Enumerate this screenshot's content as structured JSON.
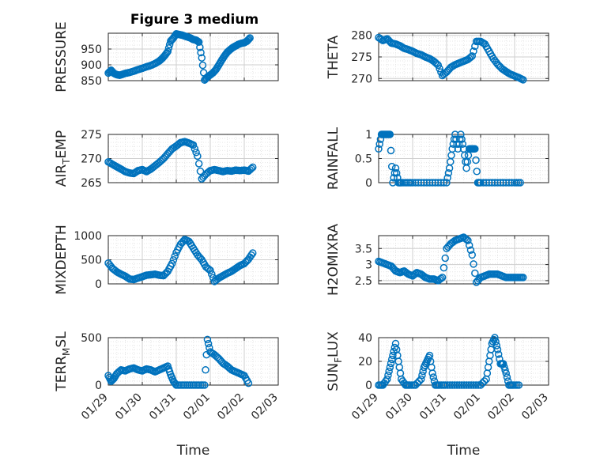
{
  "figure_title": "Figure 3 medium",
  "colors": {
    "marker": "#0072BD",
    "grid": "#d9d9d9",
    "axis": "#262626",
    "background": "#ffffff"
  },
  "chart_data": [
    {
      "type": "scatter",
      "ylabel": "PRESSURE",
      "title": "Figure 3 medium",
      "xlim": [
        "01/29",
        "02/03"
      ],
      "ylim": [
        850,
        1000
      ],
      "yticks": [
        "950",
        "900",
        "850"
      ],
      "grid": true,
      "x": [
        "01/29 00:00",
        "01/29 02:00",
        "01/29 04:00",
        "01/29 06:00",
        "01/29 08:00",
        "01/29 10:00",
        "01/29 12:00",
        "01/29 15:00",
        "01/29 18:00",
        "01/29 21:00",
        "01/30 00:00",
        "01/30 03:00",
        "01/30 06:00",
        "01/30 09:00",
        "01/30 12:00",
        "01/30 14:00",
        "01/30 16:00",
        "01/30 18:00",
        "01/30 20:00",
        "01/30 22:00",
        "01/31 00:00",
        "01/31 02:00",
        "01/31 04:00",
        "01/31 06:00",
        "01/31 08:00",
        "01/31 10:00",
        "01/31 12:00",
        "01/31 14:00",
        "01/31 16:00",
        "01/31 18:00",
        "01/31 20:00",
        "01/31 22:00",
        "02/01 00:00",
        "02/01 02:00",
        "02/01 04:00",
        "02/01 06:00",
        "02/01 08:00",
        "02/01 10:00",
        "02/01 12:00",
        "02/01 14:00",
        "02/01 16:00",
        "02/01 18:00",
        "02/01 20:00",
        "02/01 22:00",
        "02/02 00:00",
        "02/02 02:00",
        "02/02 04:00"
      ],
      "y": [
        874,
        883,
        873,
        869,
        867,
        870,
        873,
        876,
        880,
        885,
        889,
        894,
        898,
        904,
        912,
        920,
        930,
        942,
        975,
        985,
        998,
        996,
        994,
        991,
        988,
        985,
        980,
        978,
        972,
        922,
        852,
        862,
        868,
        875,
        885,
        899,
        914,
        928,
        940,
        948,
        955,
        960,
        965,
        968,
        970,
        975,
        985
      ]
    },
    {
      "type": "scatter",
      "ylabel": "THETA",
      "xlim": [
        "01/29",
        "02/03"
      ],
      "ylim": [
        269.5,
        280.5
      ],
      "yticks": [
        "280",
        "275",
        "270"
      ],
      "grid": true,
      "x": [
        "01/29 00:00",
        "01/29 03:00",
        "01/29 06:00",
        "01/29 09:00",
        "01/29 12:00",
        "01/29 15:00",
        "01/29 18:00",
        "01/29 21:00",
        "01/30 00:00",
        "01/30 03:00",
        "01/30 06:00",
        "01/30 09:00",
        "01/30 12:00",
        "01/30 15:00",
        "01/30 18:00",
        "01/30 21:00",
        "01/31 00:00",
        "01/31 03:00",
        "01/31 06:00",
        "01/31 09:00",
        "01/31 12:00",
        "01/31 15:00",
        "01/31 18:00",
        "01/31 21:00",
        "02/01 00:00",
        "02/01 03:00",
        "02/01 06:00",
        "02/01 09:00",
        "02/01 12:00",
        "02/01 15:00",
        "02/01 18:00",
        "02/01 21:00",
        "02/02 00:00",
        "02/02 03:00",
        "02/02 06:00"
      ],
      "y": [
        279.5,
        278.8,
        279.2,
        278.2,
        278.0,
        277.6,
        277.0,
        276.7,
        276.3,
        275.8,
        275.5,
        275.0,
        274.6,
        274.0,
        273.1,
        270.7,
        271.5,
        272.6,
        273.2,
        273.6,
        274.0,
        274.4,
        275.2,
        278.6,
        278.6,
        278.0,
        276.3,
        274.6,
        273.3,
        272.3,
        271.6,
        271.0,
        270.6,
        270.2,
        269.7
      ]
    },
    {
      "type": "scatter",
      "ylabel": "AIR_TEMP",
      "xlim": [
        "01/29",
        "02/03"
      ],
      "ylim": [
        265,
        275
      ],
      "yticks": [
        "275",
        "270",
        "265"
      ],
      "grid": true,
      "x": [
        "01/29 00:00",
        "01/29 03:00",
        "01/29 06:00",
        "01/29 09:00",
        "01/29 12:00",
        "01/29 15:00",
        "01/29 18:00",
        "01/29 21:00",
        "01/30 00:00",
        "01/30 03:00",
        "01/30 06:00",
        "01/30 09:00",
        "01/30 12:00",
        "01/30 15:00",
        "01/30 18:00",
        "01/30 21:00",
        "01/31 00:00",
        "01/31 03:00",
        "01/31 06:00",
        "01/31 09:00",
        "01/31 12:00",
        "01/31 15:00",
        "01/31 18:00",
        "01/31 21:00",
        "02/01 00:00",
        "02/01 03:00",
        "02/01 06:00",
        "02/01 09:00",
        "02/01 12:00",
        "02/01 15:00",
        "02/01 18:00",
        "02/01 21:00",
        "02/02 00:00",
        "02/02 03:00",
        "02/02 06:00"
      ],
      "y": [
        269.3,
        268.8,
        268.3,
        267.8,
        267.3,
        267.0,
        266.9,
        267.5,
        267.7,
        267.3,
        267.8,
        268.5,
        269.2,
        270.0,
        271.0,
        272.0,
        272.6,
        273.3,
        273.5,
        273.2,
        272.8,
        270.5,
        265.8,
        266.8,
        267.5,
        267.7,
        267.5,
        267.3,
        267.5,
        267.4,
        267.6,
        267.5,
        267.6,
        267.4,
        268.2
      ]
    },
    {
      "type": "scatter",
      "ylabel": "RAINFALL",
      "xlim": [
        "01/29",
        "02/03"
      ],
      "ylim": [
        0,
        1
      ],
      "yticks": [
        "1",
        "0.5",
        "0"
      ],
      "grid": true,
      "x": [
        "01/29 00:00",
        "01/29 02:00",
        "01/29 04:00",
        "01/29 06:00",
        "01/29 08:00",
        "01/29 10:00",
        "01/29 12:00",
        "01/29 14:00",
        "01/29 16:00",
        "01/29 20:00",
        "01/30 00:00",
        "01/30 06:00",
        "01/30 12:00",
        "01/30 18:00",
        "01/31 00:00",
        "01/31 02:00",
        "01/31 04:00",
        "01/31 06:00",
        "01/31 08:00",
        "01/31 10:00",
        "01/31 12:00",
        "01/31 14:00",
        "01/31 16:00",
        "01/31 18:00",
        "01/31 20:00",
        "01/31 22:00",
        "02/01 00:00",
        "02/01 06:00",
        "02/01 12:00",
        "02/01 18:00",
        "02/02 00:00",
        "02/02 04:00"
      ],
      "y": [
        0.7,
        1,
        1,
        1,
        1,
        0,
        0.3,
        0,
        0,
        0,
        0,
        0,
        0,
        0,
        0,
        0.3,
        0.7,
        1,
        0.7,
        1,
        0.7,
        0.3,
        0.7,
        0.7,
        0.7,
        0,
        0,
        0,
        0,
        0,
        0,
        0
      ]
    },
    {
      "type": "scatter",
      "ylabel": "MIXDEPTH",
      "xlim": [
        "01/29",
        "02/03"
      ],
      "ylim": [
        0,
        1000
      ],
      "yticks": [
        "1000",
        "500",
        "0"
      ],
      "grid": true,
      "x": [
        "01/29 00:00",
        "01/29 03:00",
        "01/29 06:00",
        "01/29 09:00",
        "01/29 12:00",
        "01/29 15:00",
        "01/29 18:00",
        "01/29 21:00",
        "01/30 00:00",
        "01/30 03:00",
        "01/30 06:00",
        "01/30 09:00",
        "01/30 12:00",
        "01/30 15:00",
        "01/30 18:00",
        "01/30 21:00",
        "01/31 00:00",
        "01/31 03:00",
        "01/31 06:00",
        "01/31 09:00",
        "01/31 12:00",
        "01/31 15:00",
        "01/31 18:00",
        "01/31 21:00",
        "02/01 00:00",
        "02/01 03:00",
        "02/01 06:00",
        "02/01 09:00",
        "02/01 12:00",
        "02/01 15:00",
        "02/01 18:00",
        "02/01 21:00",
        "02/02 00:00",
        "02/02 03:00",
        "02/02 06:00"
      ],
      "y": [
        430,
        320,
        250,
        200,
        160,
        100,
        90,
        120,
        150,
        180,
        190,
        200,
        180,
        170,
        260,
        420,
        650,
        820,
        920,
        880,
        740,
        600,
        500,
        350,
        280,
        50,
        120,
        170,
        220,
        260,
        320,
        380,
        420,
        510,
        640
      ]
    },
    {
      "type": "scatter",
      "ylabel": "H2OMIXRA",
      "xlim": [
        "01/29",
        "02/03"
      ],
      "ylim": [
        2.4,
        3.9
      ],
      "yticks": [
        "3.5",
        "3",
        "2.5"
      ],
      "grid": true,
      "x": [
        "01/29 00:00",
        "01/29 03:00",
        "01/29 06:00",
        "01/29 09:00",
        "01/29 12:00",
        "01/29 15:00",
        "01/29 18:00",
        "01/29 21:00",
        "01/30 00:00",
        "01/30 03:00",
        "01/30 06:00",
        "01/30 09:00",
        "01/30 12:00",
        "01/30 15:00",
        "01/30 18:00",
        "01/30 21:00",
        "01/31 00:00",
        "01/31 03:00",
        "01/31 06:00",
        "01/31 09:00",
        "01/31 12:00",
        "01/31 15:00",
        "01/31 18:00",
        "01/31 21:00",
        "02/01 00:00",
        "02/01 03:00",
        "02/01 06:00",
        "02/01 09:00",
        "02/01 12:00",
        "02/01 15:00",
        "02/01 18:00",
        "02/01 21:00",
        "02/02 00:00",
        "02/02 03:00",
        "02/02 06:00"
      ],
      "y": [
        3.1,
        3.05,
        3.0,
        2.95,
        2.8,
        2.75,
        2.8,
        2.7,
        2.65,
        2.75,
        2.7,
        2.6,
        2.55,
        2.55,
        2.5,
        2.6,
        3.5,
        3.65,
        3.75,
        3.8,
        3.85,
        3.75,
        3.3,
        2.45,
        2.6,
        2.65,
        2.7,
        2.7,
        2.7,
        2.65,
        2.6,
        2.6,
        2.6,
        2.6,
        2.6
      ]
    },
    {
      "type": "scatter",
      "ylabel": "TERR_MSL",
      "xlim": [
        "01/29",
        "02/03"
      ],
      "ylim": [
        0,
        500
      ],
      "yticks": [
        "500",
        "0"
      ],
      "xticks": [
        "01/29",
        "01/30",
        "01/31",
        "02/01",
        "02/02",
        "02/03"
      ],
      "xlabel": "Time",
      "grid": true,
      "x": [
        "01/29 00:00",
        "01/29 02:00",
        "01/29 04:00",
        "01/29 06:00",
        "01/29 09:00",
        "01/29 12:00",
        "01/29 15:00",
        "01/29 18:00",
        "01/29 21:00",
        "01/30 00:00",
        "01/30 03:00",
        "01/30 06:00",
        "01/30 09:00",
        "01/30 12:00",
        "01/30 15:00",
        "01/30 18:00",
        "01/30 20:00",
        "01/30 22:00",
        "01/31 00:00",
        "01/31 04:00",
        "01/31 08:00",
        "01/31 12:00",
        "01/31 16:00",
        "01/31 20:00",
        "01/31 22:00",
        "02/01 00:00",
        "02/01 03:00",
        "02/01 06:00",
        "02/01 09:00",
        "02/01 12:00",
        "02/01 15:00",
        "02/01 18:00",
        "02/01 21:00",
        "02/02 00:00",
        "02/02 03:00"
      ],
      "y": [
        100,
        40,
        70,
        120,
        160,
        150,
        170,
        180,
        160,
        150,
        170,
        160,
        140,
        160,
        180,
        200,
        110,
        40,
        0,
        0,
        0,
        0,
        0,
        0,
        480,
        350,
        320,
        280,
        230,
        200,
        160,
        140,
        120,
        100,
        20
      ]
    },
    {
      "type": "scatter",
      "ylabel": "SUN_FLUX",
      "xlim": [
        "01/29",
        "02/03"
      ],
      "ylim": [
        0,
        40
      ],
      "yticks": [
        "40",
        "20",
        "0"
      ],
      "xticks": [
        "01/29",
        "01/30",
        "01/31",
        "02/01",
        "02/02",
        "02/03"
      ],
      "xlabel": "Time",
      "grid": true,
      "x": [
        "01/29 00:00",
        "01/29 03:00",
        "01/29 06:00",
        "01/29 08:00",
        "01/29 10:00",
        "01/29 12:00",
        "01/29 14:00",
        "01/29 16:00",
        "01/29 19:00",
        "01/29 22:00",
        "01/30 02:00",
        "01/30 06:00",
        "01/30 08:00",
        "01/30 10:00",
        "01/30 12:00",
        "01/30 14:00",
        "01/30 16:00",
        "01/30 19:00",
        "01/30 23:00",
        "01/31 04:00",
        "01/31 09:00",
        "01/31 14:00",
        "01/31 19:00",
        "02/01 00:00",
        "02/01 04:00",
        "02/01 06:00",
        "02/01 08:00",
        "02/01 10:00",
        "02/01 12:00",
        "02/01 14:00",
        "02/01 16:00",
        "02/01 18:00",
        "02/01 20:00",
        "02/01 23:00",
        "02/02 03:00"
      ],
      "y": [
        0,
        0,
        5,
        15,
        25,
        35,
        20,
        5,
        0,
        0,
        0,
        5,
        15,
        20,
        25,
        10,
        0,
        0,
        0,
        0,
        0,
        0,
        0,
        0,
        5,
        20,
        35,
        40,
        30,
        18,
        18,
        10,
        0,
        0,
        0
      ]
    }
  ]
}
